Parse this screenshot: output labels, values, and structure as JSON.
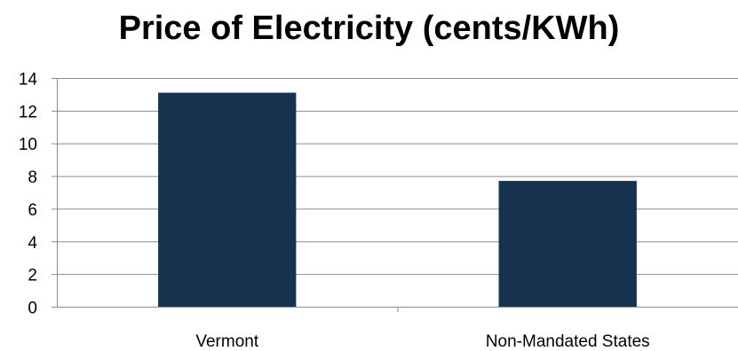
{
  "chart_data": {
    "type": "bar",
    "title": "Price of Electricity (cents/KWh)",
    "categories": [
      "Vermont",
      "Non-Mandated States"
    ],
    "values": [
      13.1,
      7.7
    ],
    "ylim": [
      0,
      14
    ],
    "yticks": [
      0,
      2,
      4,
      6,
      8,
      10,
      12,
      14
    ],
    "grid": true,
    "legend": "none",
    "colors": {
      "bar": "#17324f",
      "grid": "#8c8c8c",
      "axis": "#8c8c8c"
    }
  }
}
